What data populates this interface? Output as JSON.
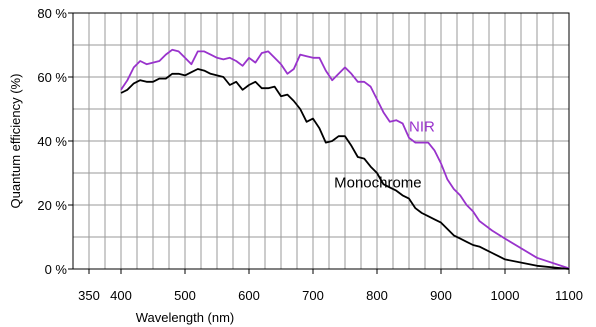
{
  "chart_data": {
    "type": "line",
    "title": "",
    "xlabel": "Wavelength (nm)",
    "ylabel": "Quantum efficiency (%)",
    "xlim": [
      325,
      1100
    ],
    "ylim": [
      0,
      80
    ],
    "x_ticks": [
      350,
      400,
      500,
      600,
      700,
      800,
      900,
      1000,
      1100
    ],
    "x_tick_labels": [
      "350",
      "400",
      "500",
      "600",
      "700",
      "800",
      "900",
      "1000",
      "1100"
    ],
    "x_grid": [
      325,
      350,
      375,
      400,
      425,
      450,
      475,
      500,
      525,
      550,
      575,
      600,
      625,
      650,
      675,
      700,
      725,
      750,
      775,
      800,
      825,
      850,
      875,
      900,
      925,
      950,
      975,
      1000,
      1025,
      1050,
      1075,
      1100
    ],
    "y_ticks": [
      0,
      20,
      40,
      60,
      80
    ],
    "y_tick_labels": [
      "0 %",
      "20 %",
      "40 %",
      "60 %",
      "80 %"
    ],
    "y_grid": [
      0,
      10,
      20,
      30,
      40,
      50,
      60,
      70,
      80
    ],
    "grid": true,
    "series": [
      {
        "name": "NIR",
        "color": "#9933cc",
        "label_at": [
          850,
          43
        ],
        "points": [
          [
            400,
            56
          ],
          [
            410,
            59
          ],
          [
            420,
            63
          ],
          [
            430,
            65
          ],
          [
            440,
            64
          ],
          [
            460,
            65
          ],
          [
            470,
            67
          ],
          [
            480,
            68.5
          ],
          [
            490,
            68
          ],
          [
            500,
            66
          ],
          [
            510,
            64
          ],
          [
            520,
            68
          ],
          [
            530,
            68
          ],
          [
            540,
            67
          ],
          [
            550,
            66
          ],
          [
            560,
            65.5
          ],
          [
            570,
            66
          ],
          [
            580,
            65
          ],
          [
            590,
            63.5
          ],
          [
            600,
            66
          ],
          [
            610,
            64.5
          ],
          [
            620,
            67.5
          ],
          [
            630,
            68
          ],
          [
            640,
            66
          ],
          [
            650,
            64
          ],
          [
            660,
            61
          ],
          [
            670,
            62.5
          ],
          [
            680,
            67
          ],
          [
            690,
            66.5
          ],
          [
            700,
            66
          ],
          [
            710,
            66
          ],
          [
            720,
            62
          ],
          [
            730,
            59
          ],
          [
            740,
            61
          ],
          [
            750,
            63
          ],
          [
            760,
            61
          ],
          [
            770,
            58.5
          ],
          [
            780,
            58.5
          ],
          [
            790,
            57
          ],
          [
            800,
            53
          ],
          [
            810,
            49
          ],
          [
            820,
            46
          ],
          [
            830,
            46.5
          ],
          [
            840,
            45.5
          ],
          [
            850,
            41
          ],
          [
            860,
            39.5
          ],
          [
            870,
            39.5
          ],
          [
            880,
            39.5
          ],
          [
            890,
            37
          ],
          [
            900,
            33
          ],
          [
            910,
            28
          ],
          [
            920,
            25
          ],
          [
            930,
            23
          ],
          [
            940,
            20
          ],
          [
            950,
            18
          ],
          [
            960,
            15
          ],
          [
            970,
            13.5
          ],
          [
            980,
            12
          ],
          [
            1000,
            9.5
          ],
          [
            1050,
            3.5
          ],
          [
            1100,
            0.2
          ]
        ]
      },
      {
        "name": "Monochrome",
        "color": "#000000",
        "label_at": [
          733,
          25.5
        ],
        "points": [
          [
            400,
            55
          ],
          [
            410,
            56
          ],
          [
            420,
            58
          ],
          [
            430,
            59
          ],
          [
            440,
            58.5
          ],
          [
            450,
            58.5
          ],
          [
            460,
            59.5
          ],
          [
            470,
            59.5
          ],
          [
            480,
            61
          ],
          [
            490,
            61
          ],
          [
            500,
            60.5
          ],
          [
            510,
            61.5
          ],
          [
            520,
            62.5
          ],
          [
            530,
            62
          ],
          [
            540,
            61
          ],
          [
            550,
            60.5
          ],
          [
            560,
            60
          ],
          [
            570,
            57.5
          ],
          [
            580,
            58.5
          ],
          [
            590,
            56
          ],
          [
            600,
            57.5
          ],
          [
            610,
            58.5
          ],
          [
            620,
            56.5
          ],
          [
            630,
            56.5
          ],
          [
            640,
            57
          ],
          [
            650,
            54
          ],
          [
            660,
            54.5
          ],
          [
            670,
            52.5
          ],
          [
            680,
            50
          ],
          [
            690,
            46
          ],
          [
            700,
            47
          ],
          [
            710,
            44
          ],
          [
            720,
            39.5
          ],
          [
            730,
            40
          ],
          [
            740,
            41.5
          ],
          [
            750,
            41.5
          ],
          [
            760,
            38.5
          ],
          [
            770,
            35
          ],
          [
            780,
            34.5
          ],
          [
            790,
            32
          ],
          [
            800,
            30
          ],
          [
            810,
            26.5
          ],
          [
            820,
            25.5
          ],
          [
            830,
            24.5
          ],
          [
            840,
            23
          ],
          [
            850,
            22
          ],
          [
            860,
            19
          ],
          [
            870,
            17.5
          ],
          [
            880,
            16.5
          ],
          [
            890,
            15.5
          ],
          [
            900,
            14.5
          ],
          [
            910,
            12.5
          ],
          [
            920,
            10.5
          ],
          [
            930,
            9.5
          ],
          [
            940,
            8.5
          ],
          [
            950,
            7.5
          ],
          [
            960,
            7
          ],
          [
            970,
            6
          ],
          [
            980,
            5
          ],
          [
            990,
            4
          ],
          [
            1000,
            3
          ],
          [
            1050,
            1
          ],
          [
            1100,
            0
          ]
        ]
      }
    ]
  }
}
